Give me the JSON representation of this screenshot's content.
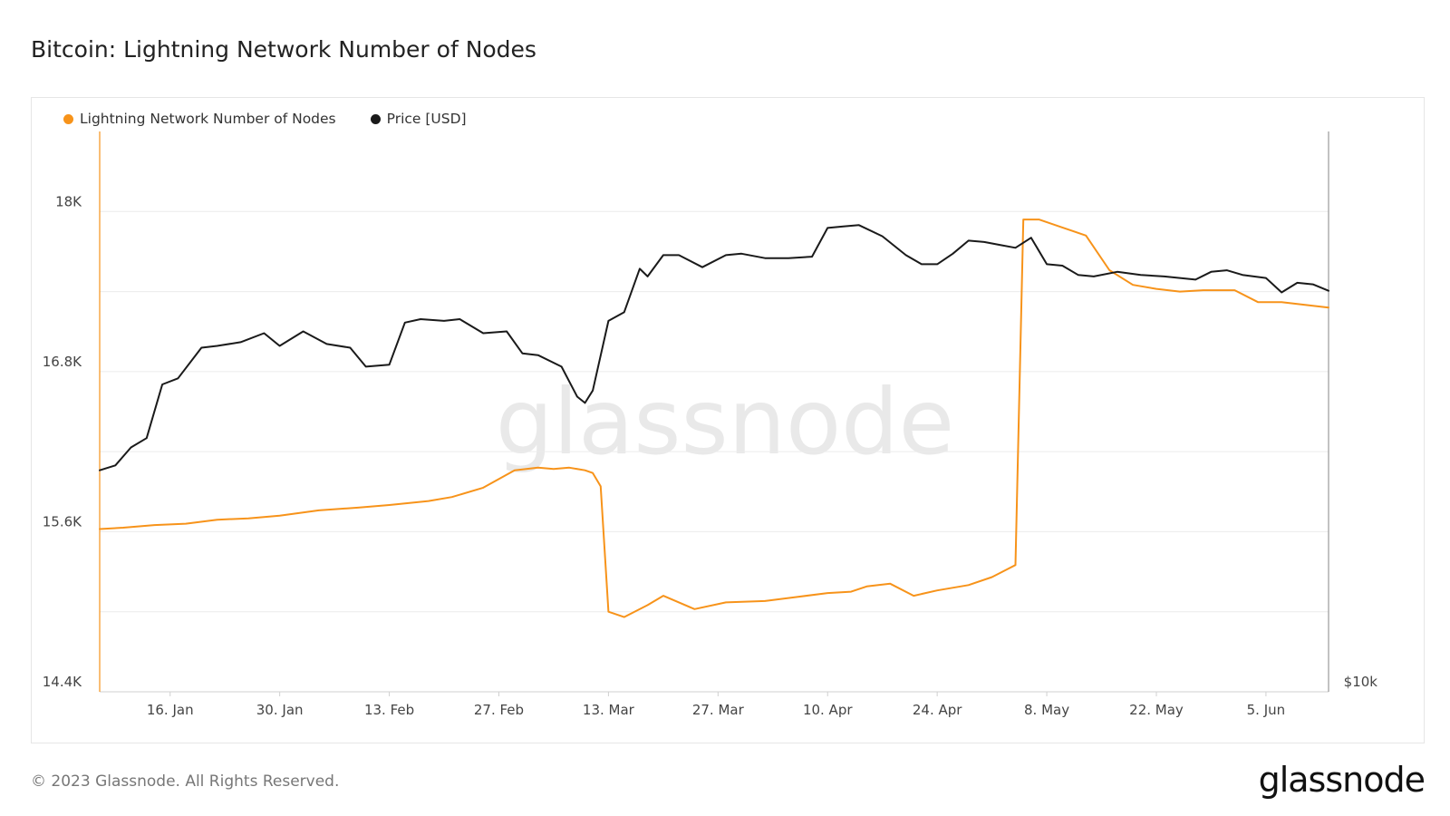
{
  "title": "Bitcoin: Lightning Network Number of Nodes",
  "footer": {
    "copyright": "© 2023 Glassnode. All Rights Reserved.",
    "brand": "glassnode"
  },
  "watermark": "glassnode",
  "colors": {
    "nodes": "#f7931a",
    "price": "#1a1a1a",
    "grid": "#ececec"
  },
  "chart_data": {
    "type": "line",
    "title": "Bitcoin: Lightning Network Number of Nodes",
    "legend_placement": "top-left",
    "grid": true,
    "x_start": "2023-01-07",
    "x_end": "2023-06-13",
    "x_ticks": [
      {
        "date": "2023-01-16",
        "label": "16. Jan"
      },
      {
        "date": "2023-01-30",
        "label": "30. Jan"
      },
      {
        "date": "2023-02-13",
        "label": "13. Feb"
      },
      {
        "date": "2023-02-27",
        "label": "27. Feb"
      },
      {
        "date": "2023-03-13",
        "label": "13. Mar"
      },
      {
        "date": "2023-03-27",
        "label": "27. Mar"
      },
      {
        "date": "2023-04-10",
        "label": "10. Apr"
      },
      {
        "date": "2023-04-24",
        "label": "24. Apr"
      },
      {
        "date": "2023-05-08",
        "label": "8. May"
      },
      {
        "date": "2023-05-22",
        "label": "22. May"
      },
      {
        "date": "2023-06-05",
        "label": "5. Jun"
      }
    ],
    "y_left": {
      "ticks": [
        14400,
        15600,
        16800,
        18000
      ],
      "tick_labels": [
        "14.4K",
        "15.6K",
        "16.8K",
        "18K"
      ],
      "range": [
        14400,
        18600
      ]
    },
    "y_right": {
      "scale": "log",
      "ticks": [
        10000
      ],
      "tick_labels": [
        "$10k"
      ],
      "range": [
        10000,
        38000
      ]
    },
    "series": [
      {
        "name": "Lightning Network Number of Nodes",
        "axis": "left",
        "x": [
          "2023-01-07",
          "2023-01-10",
          "2023-01-14",
          "2023-01-18",
          "2023-01-22",
          "2023-01-26",
          "2023-01-30",
          "2023-02-04",
          "2023-02-09",
          "2023-02-13",
          "2023-02-18",
          "2023-02-21",
          "2023-02-25",
          "2023-03-01",
          "2023-03-04",
          "2023-03-06",
          "2023-03-08",
          "2023-03-10",
          "2023-03-11",
          "2023-03-12",
          "2023-03-13",
          "2023-03-15",
          "2023-03-18",
          "2023-03-20",
          "2023-03-24",
          "2023-03-28",
          "2023-04-02",
          "2023-04-06",
          "2023-04-10",
          "2023-04-13",
          "2023-04-15",
          "2023-04-18",
          "2023-04-21",
          "2023-04-24",
          "2023-04-28",
          "2023-05-01",
          "2023-05-03",
          "2023-05-04",
          "2023-05-05",
          "2023-05-07",
          "2023-05-10",
          "2023-05-13",
          "2023-05-16",
          "2023-05-19",
          "2023-05-22",
          "2023-05-25",
          "2023-05-28",
          "2023-06-01",
          "2023-06-04",
          "2023-06-07",
          "2023-06-10",
          "2023-06-13"
        ],
        "y": [
          15620,
          15630,
          15650,
          15660,
          15690,
          15700,
          15720,
          15760,
          15780,
          15800,
          15830,
          15860,
          15930,
          16060,
          16080,
          16070,
          16080,
          16060,
          16040,
          15940,
          15000,
          14960,
          15050,
          15120,
          15020,
          15070,
          15080,
          15110,
          15140,
          15150,
          15190,
          15210,
          15120,
          15160,
          15200,
          15260,
          15320,
          15350,
          17940,
          17940,
          17880,
          17820,
          17560,
          17450,
          17420,
          17400,
          17410,
          17410,
          17320,
          17320,
          17300,
          17280
        ]
      },
      {
        "name": "Price [USD]",
        "axis": "right",
        "x": [
          "2023-01-07",
          "2023-01-09",
          "2023-01-11",
          "2023-01-13",
          "2023-01-15",
          "2023-01-17",
          "2023-01-20",
          "2023-01-22",
          "2023-01-25",
          "2023-01-28",
          "2023-01-30",
          "2023-02-02",
          "2023-02-05",
          "2023-02-08",
          "2023-02-10",
          "2023-02-13",
          "2023-02-15",
          "2023-02-17",
          "2023-02-20",
          "2023-02-22",
          "2023-02-25",
          "2023-02-28",
          "2023-03-02",
          "2023-03-04",
          "2023-03-07",
          "2023-03-09",
          "2023-03-10",
          "2023-03-11",
          "2023-03-13",
          "2023-03-15",
          "2023-03-17",
          "2023-03-18",
          "2023-03-20",
          "2023-03-22",
          "2023-03-25",
          "2023-03-28",
          "2023-03-30",
          "2023-04-02",
          "2023-04-05",
          "2023-04-08",
          "2023-04-10",
          "2023-04-12",
          "2023-04-14",
          "2023-04-17",
          "2023-04-20",
          "2023-04-22",
          "2023-04-24",
          "2023-04-26",
          "2023-04-28",
          "2023-04-30",
          "2023-05-02",
          "2023-05-04",
          "2023-05-06",
          "2023-05-08",
          "2023-05-10",
          "2023-05-12",
          "2023-05-14",
          "2023-05-17",
          "2023-05-20",
          "2023-05-23",
          "2023-05-25",
          "2023-05-27",
          "2023-05-29",
          "2023-05-31",
          "2023-06-02",
          "2023-06-05",
          "2023-06-07",
          "2023-06-09",
          "2023-06-11",
          "2023-06-13"
        ],
        "y": [
          16950,
          17150,
          17900,
          18300,
          20800,
          21100,
          22700,
          22800,
          23000,
          23500,
          22800,
          23600,
          22900,
          22700,
          21700,
          21800,
          24100,
          24300,
          24200,
          24300,
          23500,
          23600,
          22400,
          22300,
          21700,
          20200,
          19900,
          20500,
          24200,
          24700,
          27400,
          26900,
          28300,
          28300,
          27500,
          28300,
          28400,
          28100,
          28100,
          28200,
          30200,
          30300,
          30400,
          29600,
          28300,
          27700,
          27700,
          28400,
          29300,
          29200,
          29000,
          28800,
          29500,
          27700,
          27600,
          27000,
          26900,
          27200,
          27000,
          26900,
          26800,
          26700,
          27200,
          27300,
          27000,
          26800,
          25900,
          26500,
          26400,
          26000
        ]
      }
    ]
  }
}
